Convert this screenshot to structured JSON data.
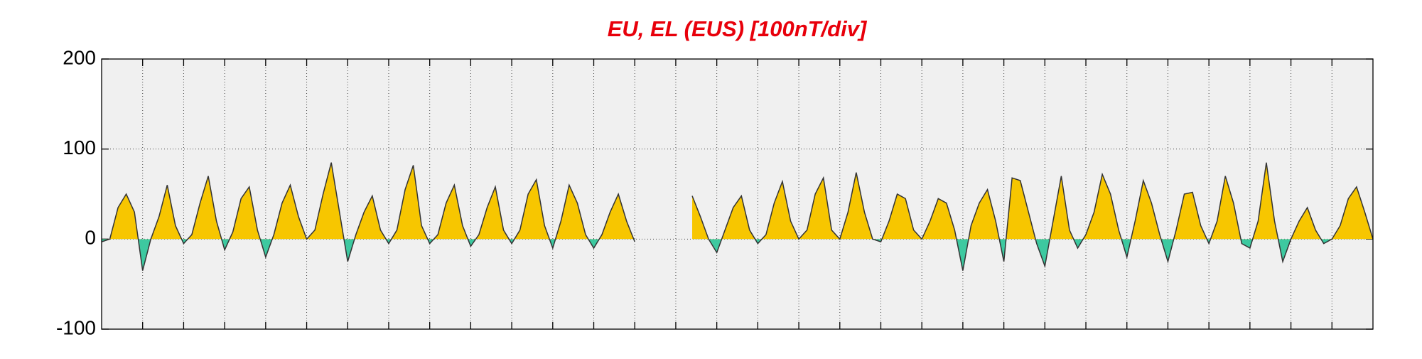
{
  "chart_data": {
    "type": "area",
    "title": "EU, EL (EUS)  [100nT/div]",
    "x": [
      0,
      0.2,
      0.4,
      0.6,
      0.8,
      1,
      1.2,
      1.4,
      1.6,
      1.8,
      2,
      2.2,
      2.4,
      2.6,
      2.8,
      3,
      3.2,
      3.4,
      3.6,
      3.8,
      4,
      4.2,
      4.4,
      4.6,
      4.8,
      5,
      5.2,
      5.4,
      5.6,
      5.8,
      6,
      6.2,
      6.4,
      6.6,
      6.8,
      7,
      7.2,
      7.4,
      7.6,
      7.8,
      8,
      8.2,
      8.4,
      8.6,
      8.8,
      9,
      9.2,
      9.4,
      9.6,
      9.8,
      10,
      10.2,
      10.4,
      10.6,
      10.8,
      11,
      11.2,
      11.4,
      11.6,
      11.8,
      12,
      12.2,
      12.4,
      12.6,
      12.8,
      13,
      13.2,
      13.4,
      13.6,
      13.8,
      14,
      14.2,
      14.4,
      14.6,
      14.8,
      15,
      15.2,
      15.4,
      15.6,
      15.8,
      16,
      16.2,
      16.4,
      16.6,
      16.8,
      17,
      17.2,
      17.4,
      17.6,
      17.8,
      18,
      18.2,
      18.4,
      18.6,
      18.8,
      19,
      19.2,
      19.4,
      19.6,
      19.8,
      20,
      20.2,
      20.4,
      20.6,
      20.8,
      21,
      21.2,
      21.4,
      21.6,
      21.8,
      22,
      22.2,
      22.4,
      22.6,
      22.8,
      23,
      23.2,
      23.4,
      23.6,
      23.8,
      24,
      24.2,
      24.4,
      24.6,
      24.8,
      25,
      25.2,
      25.4,
      25.6,
      25.8,
      26,
      26.2,
      26.4,
      26.6,
      26.8,
      27,
      27.2,
      27.4,
      27.6,
      27.8,
      28,
      28.2,
      28.4,
      28.6,
      28.8,
      29,
      29.2,
      29.4,
      29.6,
      29.8,
      30,
      30.2,
      30.4,
      30.6,
      30.8,
      31
    ],
    "values": [
      -3,
      0,
      35,
      50,
      30,
      -35,
      0,
      25,
      60,
      15,
      -5,
      5,
      40,
      70,
      20,
      -12,
      8,
      45,
      58,
      10,
      -20,
      5,
      40,
      60,
      25,
      0,
      10,
      50,
      85,
      30,
      -25,
      5,
      30,
      48,
      10,
      -5,
      10,
      55,
      82,
      15,
      -5,
      5,
      40,
      60,
      15,
      -8,
      5,
      35,
      58,
      10,
      -5,
      10,
      50,
      66,
      15,
      -10,
      20,
      60,
      40,
      5,
      -10,
      5,
      30,
      50,
      20,
      -3,
      null,
      null,
      null,
      null,
      null,
      null,
      48,
      25,
      0,
      -15,
      10,
      35,
      48,
      10,
      -5,
      5,
      40,
      64,
      20,
      0,
      10,
      50,
      68,
      10,
      0,
      30,
      74,
      30,
      0,
      -3,
      20,
      50,
      45,
      10,
      0,
      20,
      45,
      40,
      10,
      -35,
      15,
      40,
      55,
      20,
      -25,
      68,
      65,
      30,
      -5,
      -30,
      20,
      70,
      10,
      -10,
      5,
      30,
      72,
      50,
      10,
      -20,
      20,
      65,
      40,
      5,
      -25,
      10,
      50,
      52,
      15,
      -5,
      20,
      70,
      40,
      -5,
      -10,
      20,
      85,
      20,
      -25,
      0,
      20,
      35,
      10,
      -5,
      0,
      15,
      45,
      58,
      30,
      0
    ],
    "positive_color": "#f7c600",
    "negative_color": "#3dc9a0",
    "line_color": "#333333",
    "xlim": [
      0,
      31
    ],
    "xticks": [
      1,
      2,
      3,
      4,
      5,
      6,
      7,
      8,
      9,
      10,
      11,
      12,
      13,
      14,
      15,
      16,
      17,
      18,
      19,
      20,
      21,
      22,
      23,
      24,
      25,
      26,
      27,
      28,
      29,
      30
    ],
    "ylim": [
      -100,
      200
    ],
    "yticks": [
      200,
      100,
      0,
      -100
    ],
    "grid": true
  }
}
